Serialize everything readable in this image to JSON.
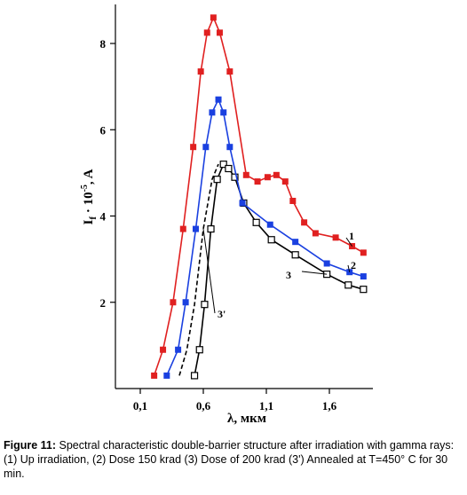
{
  "chart_data": {
    "type": "line",
    "xlabel": "λ, мкм",
    "ylabel": "I",
    "ylabel_sub": "f",
    "ylabel_mid": " · 10",
    "ylabel_sup": "-5",
    "ylabel_unit": ", A",
    "xlim": [
      0.0,
      2.0
    ],
    "ylim": [
      0.0,
      8.8
    ],
    "x_ticks": [
      0.1,
      0.6,
      1.1,
      1.6
    ],
    "x_tick_labels": [
      "0,1",
      "0,6",
      "1,1",
      "1,6"
    ],
    "y_ticks": [
      2,
      4,
      6,
      8
    ],
    "y_tick_labels": [
      "2",
      "4",
      "6",
      "8"
    ],
    "grid": false,
    "series": [
      {
        "name": "1",
        "color": "#e02020",
        "marker": "filled-square",
        "x": [
          0.21,
          0.28,
          0.36,
          0.44,
          0.52,
          0.58,
          0.63,
          0.68,
          0.73,
          0.81,
          0.94,
          1.03,
          1.11,
          1.18,
          1.25,
          1.31,
          1.4,
          1.49,
          1.65,
          1.78,
          1.87
        ],
        "y": [
          0.3,
          0.9,
          2.0,
          3.7,
          5.6,
          7.35,
          8.25,
          8.6,
          8.25,
          7.35,
          4.95,
          4.8,
          4.9,
          4.95,
          4.8,
          4.35,
          3.85,
          3.6,
          3.5,
          3.3,
          3.15
        ]
      },
      {
        "name": "2",
        "color": "#1a40e0",
        "marker": "filled-square",
        "x": [
          0.31,
          0.4,
          0.46,
          0.54,
          0.62,
          0.67,
          0.72,
          0.76,
          0.81,
          0.91,
          1.13,
          1.33,
          1.58,
          1.76,
          1.87
        ],
        "y": [
          0.3,
          0.9,
          2.0,
          3.7,
          5.6,
          6.4,
          6.7,
          6.4,
          5.6,
          4.3,
          3.8,
          3.4,
          2.9,
          2.7,
          2.6
        ]
      },
      {
        "name": "3",
        "color": "#000000",
        "marker": "open-square",
        "x": [
          0.53,
          0.57,
          0.61,
          0.66,
          0.71,
          0.76,
          0.8,
          0.85,
          0.92,
          1.02,
          1.14,
          1.33,
          1.58,
          1.75,
          1.87
        ],
        "y": [
          0.3,
          0.9,
          1.95,
          3.7,
          4.85,
          5.2,
          5.1,
          4.9,
          4.3,
          3.85,
          3.45,
          3.1,
          2.65,
          2.4,
          2.3
        ]
      },
      {
        "name": "3'",
        "color": "#000000",
        "marker": "none",
        "dashed": true,
        "x": [
          0.41,
          0.47,
          0.53,
          0.6,
          0.67,
          0.72
        ],
        "y": [
          0.3,
          0.9,
          1.95,
          3.7,
          4.85,
          5.2
        ]
      }
    ]
  },
  "caption": {
    "label": "Figure 11:",
    "text": " Spectral characteristic double-barrier structure after irradiation with gamma rays: (1) Up irradiation, (2) Dose 150 krad (3) Dose of 200 krad (3') Annealed at T=450° C for 30 min."
  }
}
